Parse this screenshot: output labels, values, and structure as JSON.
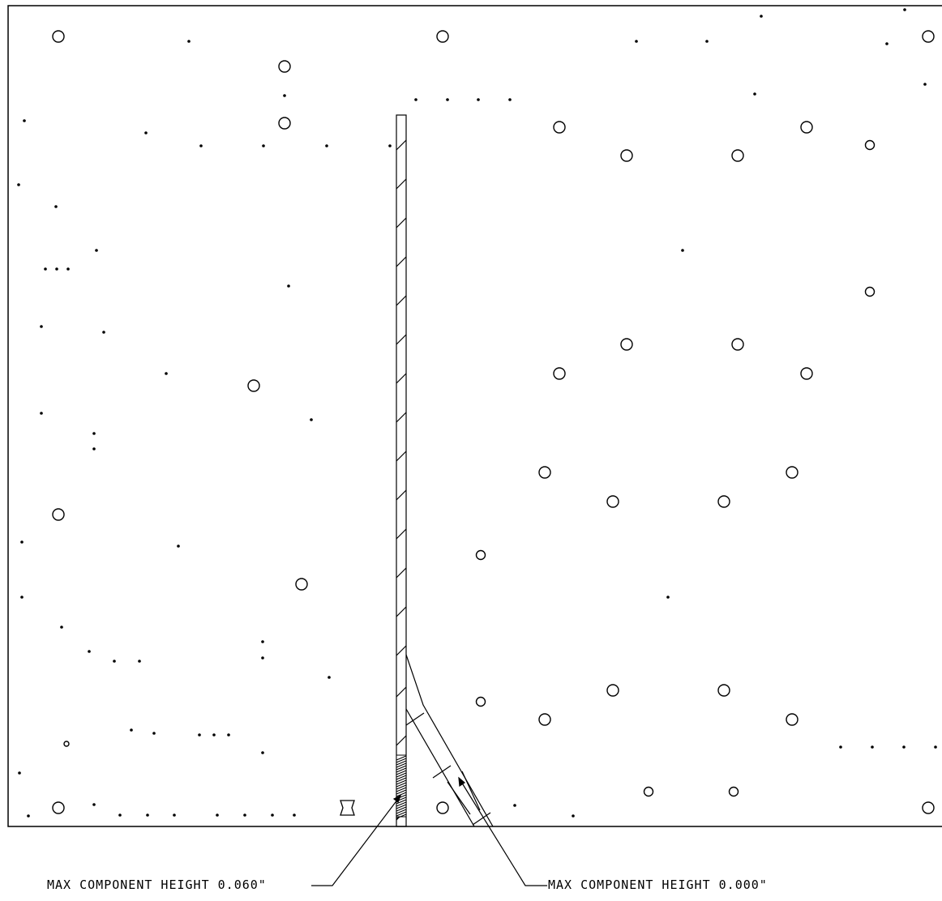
{
  "annotations": {
    "left_label": "MAX COMPONENT HEIGHT 0.060\"",
    "right_label": "MAX COMPONENT HEIGHT 0.000\""
  },
  "colors": {
    "line": "#000000",
    "background": "#ffffff"
  }
}
